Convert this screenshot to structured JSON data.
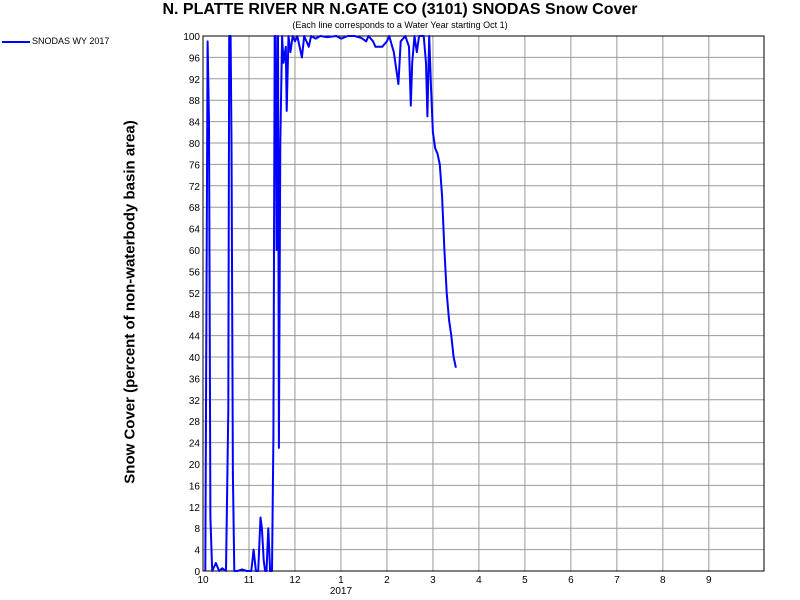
{
  "chart_data": {
    "type": "line",
    "title": "N. PLATTE RIVER NR N.GATE CO (3101) SNODAS Snow Cover",
    "subtitle": "(Each line corresponds to a Water Year starting Oct 1)",
    "ylabel": "Snow Cover (percent of non-waterbody basin area)",
    "xlabel": "",
    "ylim": [
      0,
      100
    ],
    "y_ticks": [
      "0",
      "4",
      "8",
      "12",
      "16",
      "20",
      "24",
      "28",
      "32",
      "36",
      "40",
      "44",
      "48",
      "52",
      "56",
      "60",
      "64",
      "68",
      "72",
      "76",
      "80",
      "84",
      "88",
      "92",
      "96",
      "100"
    ],
    "x_range_months": [
      10,
      22.2
    ],
    "x_ticks": [
      {
        "m": 10,
        "label": "10"
      },
      {
        "m": 11,
        "label": "11"
      },
      {
        "m": 12,
        "label": "12"
      },
      {
        "m": 13,
        "label": "1"
      },
      {
        "m": 14,
        "label": "2"
      },
      {
        "m": 15,
        "label": "3"
      },
      {
        "m": 16,
        "label": "4"
      },
      {
        "m": 17,
        "label": "5"
      },
      {
        "m": 18,
        "label": "6"
      },
      {
        "m": 19,
        "label": "7"
      },
      {
        "m": 20,
        "label": "8"
      },
      {
        "m": 21,
        "label": "9"
      }
    ],
    "year_label": "2017",
    "grid": true,
    "legend_position": "top-left",
    "series": [
      {
        "name": "SNODAS WY 2017",
        "color": "#0000ff",
        "points": [
          [
            10.05,
            0
          ],
          [
            10.1,
            99
          ],
          [
            10.13,
            84
          ],
          [
            10.16,
            10
          ],
          [
            10.2,
            0
          ],
          [
            10.28,
            1.5
          ],
          [
            10.35,
            0
          ],
          [
            10.42,
            0.5
          ],
          [
            10.5,
            0
          ],
          [
            10.55,
            30
          ],
          [
            10.57,
            100
          ],
          [
            10.6,
            100
          ],
          [
            10.62,
            80
          ],
          [
            10.65,
            18
          ],
          [
            10.68,
            0
          ],
          [
            10.75,
            0
          ],
          [
            10.85,
            0.3
          ],
          [
            10.95,
            0
          ],
          [
            11.05,
            0
          ],
          [
            11.1,
            4
          ],
          [
            11.15,
            0
          ],
          [
            11.2,
            0
          ],
          [
            11.25,
            10
          ],
          [
            11.28,
            8
          ],
          [
            11.32,
            2
          ],
          [
            11.35,
            0
          ],
          [
            11.38,
            0
          ],
          [
            11.42,
            8
          ],
          [
            11.46,
            0
          ],
          [
            11.5,
            0
          ],
          [
            11.53,
            25
          ],
          [
            11.56,
            100
          ],
          [
            11.58,
            100
          ],
          [
            11.6,
            60
          ],
          [
            11.63,
            100
          ],
          [
            11.65,
            23
          ],
          [
            11.68,
            80
          ],
          [
            11.72,
            100
          ],
          [
            11.75,
            95
          ],
          [
            11.8,
            98
          ],
          [
            11.82,
            86
          ],
          [
            11.86,
            100
          ],
          [
            11.9,
            97
          ],
          [
            11.95,
            100
          ],
          [
            12.0,
            99
          ],
          [
            12.05,
            100
          ],
          [
            12.1,
            98
          ],
          [
            12.15,
            96
          ],
          [
            12.2,
            100
          ],
          [
            12.25,
            99
          ],
          [
            12.3,
            98
          ],
          [
            12.35,
            100
          ],
          [
            12.45,
            99.5
          ],
          [
            12.55,
            100
          ],
          [
            12.7,
            99.8
          ],
          [
            12.9,
            100
          ],
          [
            13.0,
            99.5
          ],
          [
            13.15,
            100
          ],
          [
            13.3,
            100
          ],
          [
            13.45,
            99.6
          ],
          [
            13.55,
            99
          ],
          [
            13.6,
            100
          ],
          [
            13.7,
            99
          ],
          [
            13.75,
            98
          ],
          [
            13.9,
            98
          ],
          [
            14.0,
            99
          ],
          [
            14.05,
            100
          ],
          [
            14.15,
            97
          ],
          [
            14.25,
            91
          ],
          [
            14.3,
            99
          ],
          [
            14.4,
            100
          ],
          [
            14.48,
            98
          ],
          [
            14.52,
            87
          ],
          [
            14.55,
            95
          ],
          [
            14.6,
            100
          ],
          [
            14.65,
            97
          ],
          [
            14.7,
            100
          ],
          [
            14.8,
            100
          ],
          [
            14.85,
            95
          ],
          [
            14.88,
            85
          ],
          [
            14.92,
            100
          ],
          [
            14.96,
            90
          ],
          [
            15.0,
            82
          ],
          [
            15.05,
            79
          ],
          [
            15.1,
            78
          ],
          [
            15.15,
            76
          ],
          [
            15.2,
            70
          ],
          [
            15.25,
            60
          ],
          [
            15.3,
            52
          ],
          [
            15.35,
            47
          ],
          [
            15.4,
            44
          ],
          [
            15.45,
            40
          ],
          [
            15.5,
            38
          ]
        ]
      }
    ]
  }
}
